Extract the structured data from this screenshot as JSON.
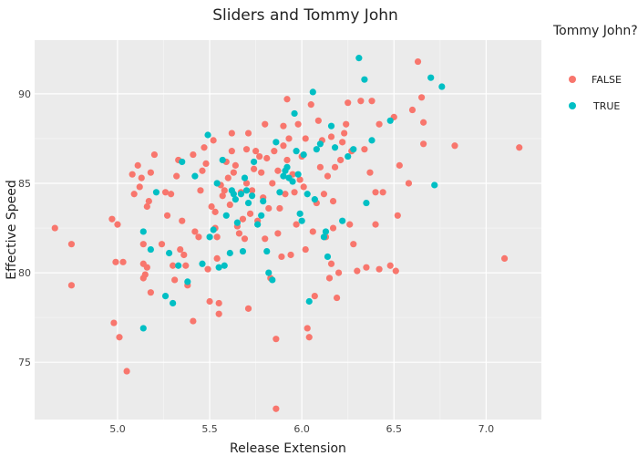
{
  "chart_data": {
    "type": "scatter",
    "title": "Sliders and Tommy John",
    "xlabel": "Release Extension",
    "ylabel": "Effective Speed",
    "xlim": [
      4.55,
      7.3
    ],
    "ylim": [
      71.8,
      93.0
    ],
    "xticks": [
      5.0,
      5.5,
      6.0,
      6.5,
      7.0
    ],
    "xtick_labels": [
      "5.0",
      "5.5",
      "6.0",
      "6.5",
      "7.0"
    ],
    "yticks": [
      75,
      80,
      85,
      90
    ],
    "ytick_labels": [
      "75",
      "80",
      "85",
      "90"
    ],
    "grid": true,
    "legend": {
      "title": "Tommy John?",
      "placement": "right"
    },
    "series": [
      {
        "name": "FALSE",
        "color": "#F8766D",
        "points": [
          [
            4.66,
            82.5
          ],
          [
            4.75,
            81.6
          ],
          [
            4.75,
            79.3
          ],
          [
            4.97,
            83.0
          ],
          [
            4.98,
            77.2
          ],
          [
            4.99,
            80.6
          ],
          [
            5.0,
            82.7
          ],
          [
            5.01,
            76.4
          ],
          [
            5.03,
            80.6
          ],
          [
            5.05,
            74.5
          ],
          [
            5.08,
            85.5
          ],
          [
            5.09,
            84.4
          ],
          [
            5.11,
            86.0
          ],
          [
            5.12,
            84.8
          ],
          [
            5.13,
            85.3
          ],
          [
            5.14,
            81.6
          ],
          [
            5.14,
            80.5
          ],
          [
            5.14,
            79.7
          ],
          [
            5.15,
            79.9
          ],
          [
            5.16,
            80.3
          ],
          [
            5.16,
            83.7
          ],
          [
            5.17,
            84.0
          ],
          [
            5.18,
            85.6
          ],
          [
            5.18,
            78.9
          ],
          [
            5.2,
            86.6
          ],
          [
            5.24,
            81.6
          ],
          [
            5.26,
            84.5
          ],
          [
            5.27,
            83.2
          ],
          [
            5.29,
            84.4
          ],
          [
            5.3,
            80.4
          ],
          [
            5.31,
            79.6
          ],
          [
            5.32,
            85.4
          ],
          [
            5.33,
            86.3
          ],
          [
            5.34,
            81.3
          ],
          [
            5.35,
            82.9
          ],
          [
            5.36,
            81.0
          ],
          [
            5.37,
            80.4
          ],
          [
            5.38,
            79.3
          ],
          [
            5.41,
            77.3
          ],
          [
            5.41,
            86.6
          ],
          [
            5.42,
            82.3
          ],
          [
            5.44,
            82.0
          ],
          [
            5.45,
            84.6
          ],
          [
            5.46,
            85.7
          ],
          [
            5.47,
            87.0
          ],
          [
            5.48,
            86.1
          ],
          [
            5.49,
            80.2
          ],
          [
            5.5,
            78.4
          ],
          [
            5.51,
            83.7
          ],
          [
            5.52,
            87.4
          ],
          [
            5.53,
            82.5
          ],
          [
            5.53,
            83.4
          ],
          [
            5.54,
            82.0
          ],
          [
            5.54,
            80.8
          ],
          [
            5.55,
            77.7
          ],
          [
            5.55,
            78.3
          ],
          [
            5.56,
            84.9
          ],
          [
            5.57,
            84.3
          ],
          [
            5.58,
            84.6
          ],
          [
            5.59,
            86.2
          ],
          [
            5.6,
            85.3
          ],
          [
            5.61,
            83.8
          ],
          [
            5.62,
            86.8
          ],
          [
            5.62,
            87.8
          ],
          [
            5.63,
            85.6
          ],
          [
            5.64,
            86.0
          ],
          [
            5.65,
            82.6
          ],
          [
            5.66,
            82.2
          ],
          [
            5.67,
            84.5
          ],
          [
            5.68,
            83.0
          ],
          [
            5.69,
            81.9
          ],
          [
            5.7,
            85.0
          ],
          [
            5.7,
            86.9
          ],
          [
            5.71,
            78.0
          ],
          [
            5.71,
            87.8
          ],
          [
            5.72,
            83.3
          ],
          [
            5.73,
            84.6
          ],
          [
            5.74,
            85.8
          ],
          [
            5.75,
            86.8
          ],
          [
            5.76,
            82.9
          ],
          [
            5.77,
            86.5
          ],
          [
            5.78,
            85.6
          ],
          [
            5.79,
            84.2
          ],
          [
            5.8,
            88.3
          ],
          [
            5.8,
            81.9
          ],
          [
            5.81,
            86.4
          ],
          [
            5.82,
            83.6
          ],
          [
            5.83,
            79.7
          ],
          [
            5.84,
            85.0
          ],
          [
            5.85,
            86.8
          ],
          [
            5.86,
            72.4
          ],
          [
            5.86,
            76.3
          ],
          [
            5.87,
            82.2
          ],
          [
            5.87,
            85.7
          ],
          [
            5.88,
            83.6
          ],
          [
            5.89,
            80.9
          ],
          [
            5.9,
            88.2
          ],
          [
            5.9,
            87.1
          ],
          [
            5.91,
            84.4
          ],
          [
            5.92,
            89.7
          ],
          [
            5.92,
            86.3
          ],
          [
            5.93,
            87.5
          ],
          [
            5.94,
            81.0
          ],
          [
            5.95,
            85.5
          ],
          [
            5.96,
            84.5
          ],
          [
            5.97,
            82.7
          ],
          [
            5.98,
            88.3
          ],
          [
            5.99,
            85.2
          ],
          [
            6.0,
            86.5
          ],
          [
            6.01,
            84.8
          ],
          [
            6.02,
            81.3
          ],
          [
            6.02,
            87.5
          ],
          [
            6.03,
            76.9
          ],
          [
            6.04,
            76.4
          ],
          [
            6.05,
            89.4
          ],
          [
            6.06,
            82.3
          ],
          [
            6.07,
            78.7
          ],
          [
            6.08,
            83.9
          ],
          [
            6.09,
            88.5
          ],
          [
            6.1,
            85.9
          ],
          [
            6.11,
            87.4
          ],
          [
            6.12,
            84.4
          ],
          [
            6.13,
            82.0
          ],
          [
            6.14,
            85.4
          ],
          [
            6.15,
            79.7
          ],
          [
            6.16,
            80.5
          ],
          [
            6.16,
            87.6
          ],
          [
            6.17,
            82.5
          ],
          [
            6.17,
            84.0
          ],
          [
            6.18,
            85.9
          ],
          [
            6.19,
            78.6
          ],
          [
            6.2,
            80.0
          ],
          [
            6.21,
            86.3
          ],
          [
            6.22,
            87.3
          ],
          [
            6.23,
            87.8
          ],
          [
            6.24,
            88.3
          ],
          [
            6.25,
            89.5
          ],
          [
            6.26,
            82.7
          ],
          [
            6.27,
            86.8
          ],
          [
            6.28,
            81.6
          ],
          [
            6.3,
            80.1
          ],
          [
            6.32,
            89.6
          ],
          [
            6.34,
            86.9
          ],
          [
            6.35,
            80.3
          ],
          [
            6.37,
            85.6
          ],
          [
            6.38,
            89.6
          ],
          [
            6.4,
            82.7
          ],
          [
            6.4,
            84.5
          ],
          [
            6.42,
            80.2
          ],
          [
            6.42,
            88.3
          ],
          [
            6.44,
            84.5
          ],
          [
            6.48,
            80.4
          ],
          [
            6.5,
            88.7
          ],
          [
            6.51,
            80.1
          ],
          [
            6.52,
            83.2
          ],
          [
            6.53,
            86.0
          ],
          [
            6.58,
            85.0
          ],
          [
            6.6,
            89.1
          ],
          [
            6.63,
            91.8
          ],
          [
            6.65,
            89.8
          ],
          [
            6.66,
            87.2
          ],
          [
            6.66,
            88.4
          ],
          [
            6.83,
            87.1
          ],
          [
            7.1,
            80.8
          ],
          [
            7.18,
            87.0
          ]
        ]
      },
      {
        "name": "TRUE",
        "color": "#00BFC4",
        "points": [
          [
            5.14,
            82.3
          ],
          [
            5.14,
            76.9
          ],
          [
            5.18,
            81.3
          ],
          [
            5.21,
            84.5
          ],
          [
            5.26,
            78.7
          ],
          [
            5.28,
            81.1
          ],
          [
            5.3,
            78.3
          ],
          [
            5.33,
            80.4
          ],
          [
            5.35,
            86.2
          ],
          [
            5.38,
            79.5
          ],
          [
            5.42,
            85.4
          ],
          [
            5.46,
            80.5
          ],
          [
            5.49,
            87.7
          ],
          [
            5.5,
            82.0
          ],
          [
            5.52,
            82.4
          ],
          [
            5.54,
            85.0
          ],
          [
            5.55,
            80.3
          ],
          [
            5.57,
            86.3
          ],
          [
            5.58,
            80.4
          ],
          [
            5.59,
            83.2
          ],
          [
            5.61,
            81.1
          ],
          [
            5.62,
            84.6
          ],
          [
            5.63,
            84.4
          ],
          [
            5.64,
            84.1
          ],
          [
            5.65,
            82.8
          ],
          [
            5.67,
            84.4
          ],
          [
            5.68,
            81.2
          ],
          [
            5.69,
            85.3
          ],
          [
            5.7,
            84.6
          ],
          [
            5.71,
            83.9
          ],
          [
            5.73,
            84.3
          ],
          [
            5.74,
            86.2
          ],
          [
            5.76,
            82.7
          ],
          [
            5.78,
            83.2
          ],
          [
            5.79,
            84.0
          ],
          [
            5.81,
            81.2
          ],
          [
            5.82,
            80.0
          ],
          [
            5.84,
            79.6
          ],
          [
            5.86,
            87.3
          ],
          [
            5.88,
            84.5
          ],
          [
            5.9,
            85.4
          ],
          [
            5.91,
            85.7
          ],
          [
            5.92,
            85.9
          ],
          [
            5.93,
            85.3
          ],
          [
            5.95,
            85.1
          ],
          [
            5.96,
            88.9
          ],
          [
            5.97,
            86.8
          ],
          [
            5.98,
            85.5
          ],
          [
            5.99,
            83.3
          ],
          [
            6.0,
            82.9
          ],
          [
            6.01,
            86.6
          ],
          [
            6.03,
            84.4
          ],
          [
            6.04,
            78.4
          ],
          [
            6.06,
            90.1
          ],
          [
            6.07,
            84.1
          ],
          [
            6.08,
            86.9
          ],
          [
            6.1,
            87.2
          ],
          [
            6.12,
            82.0
          ],
          [
            6.13,
            82.3
          ],
          [
            6.14,
            80.9
          ],
          [
            6.16,
            88.2
          ],
          [
            6.18,
            87.0
          ],
          [
            6.22,
            82.9
          ],
          [
            6.25,
            86.5
          ],
          [
            6.28,
            86.9
          ],
          [
            6.31,
            92.0
          ],
          [
            6.34,
            90.8
          ],
          [
            6.35,
            83.9
          ],
          [
            6.38,
            87.4
          ],
          [
            6.48,
            88.5
          ],
          [
            6.72,
            84.9
          ],
          [
            6.76,
            90.4
          ],
          [
            6.7,
            90.9
          ]
        ]
      }
    ]
  }
}
